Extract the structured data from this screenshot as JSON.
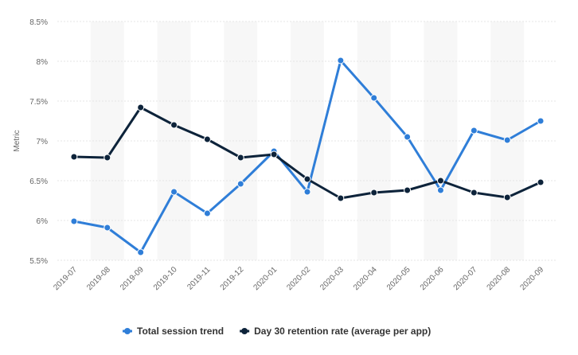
{
  "chart_data": {
    "type": "line",
    "ylabel": "Metric",
    "xlabel": "",
    "ylim": [
      5.5,
      8.5
    ],
    "y_ticks": [
      "5.5%",
      "6%",
      "6.5%",
      "7%",
      "7.5%",
      "8%",
      "8.5%"
    ],
    "y_tick_values": [
      5.5,
      6.0,
      6.5,
      7.0,
      7.5,
      8.0,
      8.5
    ],
    "categories": [
      "2019-07",
      "2019-08",
      "2019-09",
      "2019-10",
      "2019-11",
      "2019-12",
      "2020-01",
      "2020-02",
      "2020-03",
      "2020-04",
      "2020-05",
      "2020-06",
      "2020-07",
      "2020-08",
      "2020-09"
    ],
    "series": [
      {
        "name": "Total session trend",
        "color": "#2f7ed8",
        "values": [
          5.99,
          5.91,
          5.6,
          6.36,
          6.09,
          6.46,
          6.87,
          6.36,
          8.01,
          7.54,
          7.05,
          6.38,
          7.13,
          7.01,
          7.25
        ]
      },
      {
        "name": "Day 30 retention rate (average per app)",
        "color": "#0d233a",
        "values": [
          6.8,
          6.79,
          7.42,
          7.2,
          7.02,
          6.79,
          6.83,
          6.52,
          6.28,
          6.35,
          6.38,
          6.5,
          6.35,
          6.29,
          6.48
        ]
      }
    ],
    "grid": true,
    "legend_position": "bottom-center"
  }
}
